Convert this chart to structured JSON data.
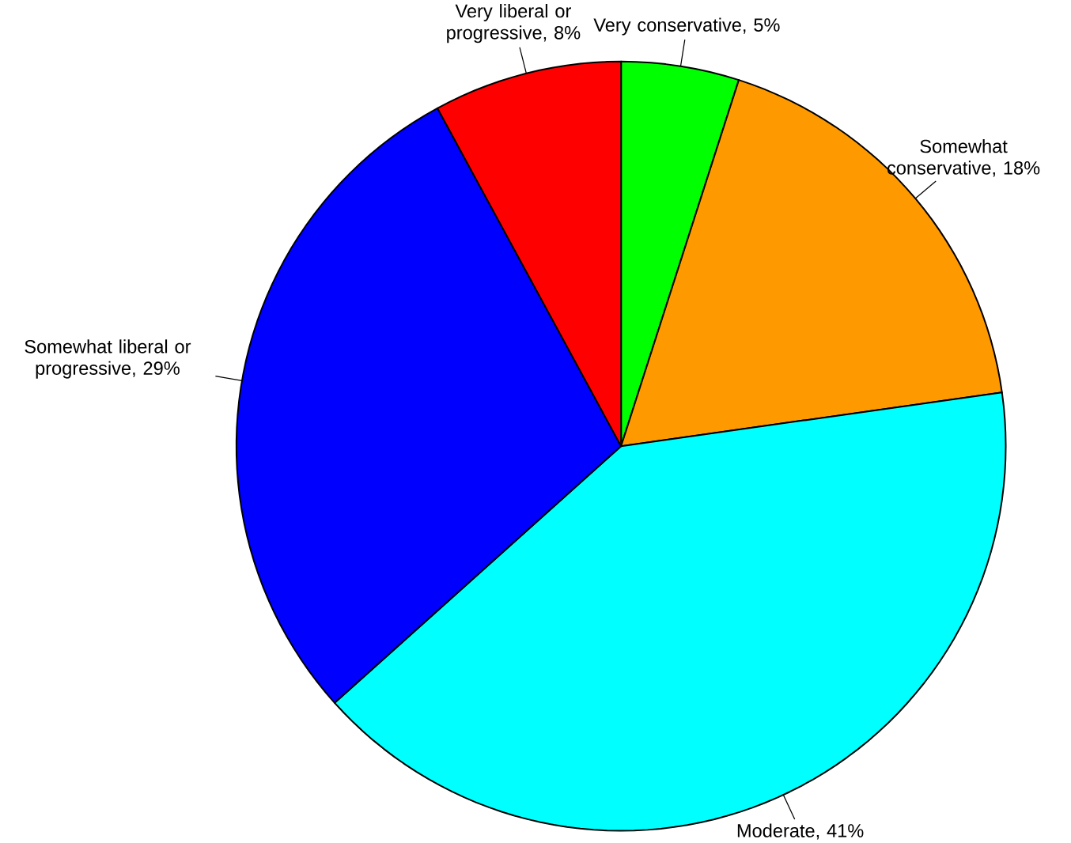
{
  "chart_data": {
    "type": "pie",
    "categories": [
      "Very conservative, 5%",
      "Somewhat conservative, 18%",
      "Moderate, 41%",
      "Somewhat liberal or progressive, 29%",
      "Very liberal or progressive, 8%"
    ],
    "values": [
      5,
      18,
      41,
      29,
      8
    ],
    "colors": [
      "#00ff00",
      "#ff9900",
      "#00ffff",
      "#0000ff",
      "#ff0000"
    ]
  }
}
